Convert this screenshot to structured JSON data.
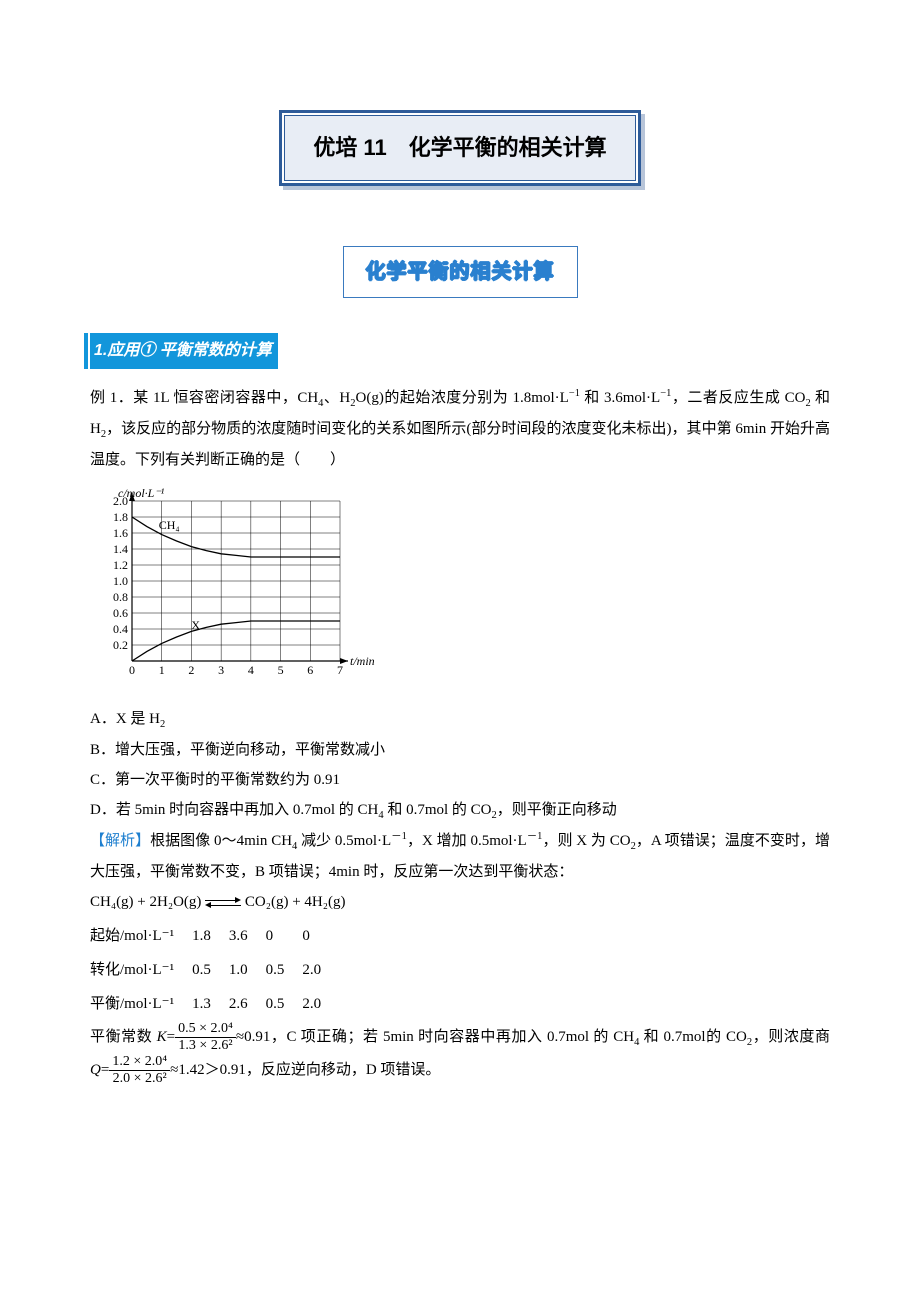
{
  "title": "优培 11　化学平衡的相关计算",
  "subtitle": "化学平衡的相关计算",
  "section_header": "1.应用① 平衡常数的计算",
  "problem_prefix": "例 1．",
  "problem_text_1": "某 1L 恒容密闭容器中，CH",
  "problem_text_2": "、H",
  "problem_text_3": "O(g)的起始浓度分别为 1.8mol·L",
  "problem_text_4": " 和 3.6mol·L",
  "problem_text_5": "，二者反应生成 CO",
  "problem_text_6": " 和 H",
  "problem_text_7": "，该反应的部分物质的浓度随时间变化的关系如图所示(部分时间段的浓度变化未标出)，其中第 6min 开始升高温度。下列有关判断正确的是（　　）",
  "chart": {
    "type": "line",
    "y_label": "c/mol·L⁻¹",
    "x_label": "t/min",
    "xlim": [
      0,
      7
    ],
    "ylim": [
      0,
      2.0
    ],
    "x_ticks": [
      0,
      1,
      2,
      3,
      4,
      5,
      6,
      7
    ],
    "y_ticks": [
      0.2,
      0.4,
      0.6,
      0.8,
      1.0,
      1.2,
      1.4,
      1.6,
      1.8,
      2.0
    ],
    "grid_color": "#000000",
    "bg_color": "#ffffff",
    "series": [
      {
        "name": "CH4",
        "label": "CH₄",
        "label_pos": [
          0.9,
          1.65
        ],
        "points": [
          [
            0,
            1.8
          ],
          [
            0.5,
            1.68
          ],
          [
            1,
            1.58
          ],
          [
            1.5,
            1.5
          ],
          [
            2,
            1.43
          ],
          [
            2.5,
            1.38
          ],
          [
            3,
            1.34
          ],
          [
            3.5,
            1.32
          ],
          [
            4,
            1.3
          ],
          [
            5,
            1.3
          ],
          [
            6,
            1.3
          ],
          [
            7,
            1.3
          ]
        ]
      },
      {
        "name": "X",
        "label": "X",
        "label_pos": [
          2.0,
          0.4
        ],
        "points": [
          [
            0,
            0
          ],
          [
            0.5,
            0.12
          ],
          [
            1,
            0.22
          ],
          [
            1.5,
            0.3
          ],
          [
            2,
            0.37
          ],
          [
            2.5,
            0.42
          ],
          [
            3,
            0.46
          ],
          [
            3.5,
            0.48
          ],
          [
            4,
            0.5
          ],
          [
            5,
            0.5
          ],
          [
            6,
            0.5
          ],
          [
            7,
            0.5
          ]
        ]
      }
    ],
    "line_color": "#000000",
    "line_width": 1.3,
    "font_size": 12
  },
  "options": {
    "A": "A．X 是 H",
    "A2": "",
    "B": "B．增大压强，平衡逆向移动，平衡常数减小",
    "C": "C．第一次平衡时的平衡常数约为 0.91",
    "D": "D．若 5min 时向容器中再加入 0.7mol 的 CH",
    "D2": " 和 0.7mol 的 CO",
    "D3": "，则平衡正向移动"
  },
  "analysis": {
    "label": "【解析】",
    "p1a": "根据图像 0～4min CH",
    "p1b": " 减少 0.5mol·L",
    "p1c": "，X 增加 0.5mol·L",
    "p1d": "，则 X 为 CO",
    "p1e": "，A 项错误；温度不变时，增大压强，平衡常数不变，B 项错误；4min 时，反应第一次达到平衡状态：",
    "eq_l": "CH₄(g) + 2H₂O(g)",
    "eq_r": "CO₂(g) + 4H₂(g)",
    "ice": {
      "rows": [
        "起始/mol·L⁻¹",
        "转化/mol·L⁻¹",
        "平衡/mol·L⁻¹"
      ],
      "data": [
        [
          "1.8",
          "3.6",
          "0",
          "0"
        ],
        [
          "0.5",
          "1.0",
          "0.5",
          "2.0"
        ],
        [
          "1.3",
          "2.6",
          "0.5",
          "2.0"
        ]
      ]
    },
    "k_text_a": "平衡常数 ",
    "k_var": "K",
    "k_eq": "=",
    "frac1": {
      "num": "0.5 × 2.0⁴",
      "den": "1.3 × 2.6²"
    },
    "k_text_b": "≈0.91，C 项正确；若 5min 时向容器中再加入 0.7mol 的 CH",
    "k_text_c": " 和 0.7mol的 CO",
    "k_text_d": "，则浓度商 ",
    "q_var": "Q",
    "frac2": {
      "num": "1.2 × 2.0⁴",
      "den": "2.0 × 2.6²"
    },
    "q_tail": "≈1.42＞0.91，反应逆向移动，D 项错误。"
  }
}
